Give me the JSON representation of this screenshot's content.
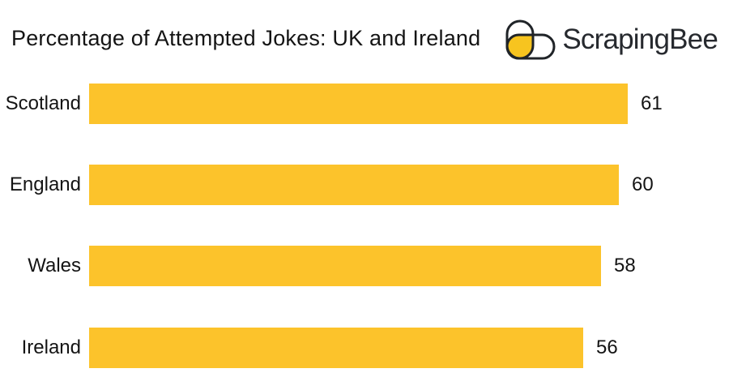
{
  "header": {
    "title": "Percentage of Attempted Jokes: UK and Ireland",
    "logo_text": "ScrapingBee"
  },
  "colors": {
    "bar": "#FCC32B",
    "logo_yellow": "#F7C41F",
    "logo_outline": "#202428",
    "logo_text": "#26292E",
    "text": "#141414",
    "background": "#FFFFFF"
  },
  "chart_data": {
    "type": "bar",
    "orientation": "horizontal",
    "title": "Percentage of Attempted Jokes: UK and Ireland",
    "categories": [
      "Scotland",
      "England",
      "Wales",
      "Ireland"
    ],
    "values": [
      61,
      60,
      58,
      56
    ],
    "xlabel": "",
    "ylabel": "",
    "xlim": [
      0,
      61
    ],
    "grid": false,
    "axes_visible": false,
    "value_labels": "end-of-bar",
    "legend": null
  }
}
